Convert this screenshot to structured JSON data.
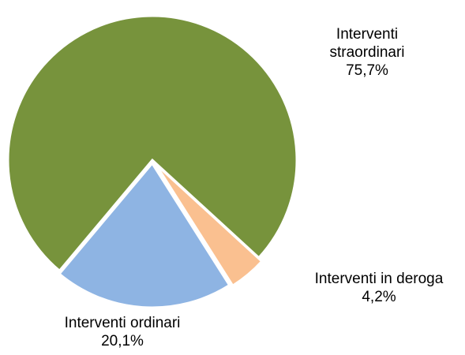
{
  "chart_data": {
    "type": "pie",
    "categories": [
      "Interventi straordinari",
      "Interventi in deroga",
      "Interventi ordinari"
    ],
    "values": [
      75.7,
      4.2,
      20.1
    ],
    "value_labels": [
      "75,7%",
      "4,2%",
      "20,1%"
    ],
    "colors": [
      "#77933c",
      "#fac090",
      "#8eb4e3"
    ]
  }
}
